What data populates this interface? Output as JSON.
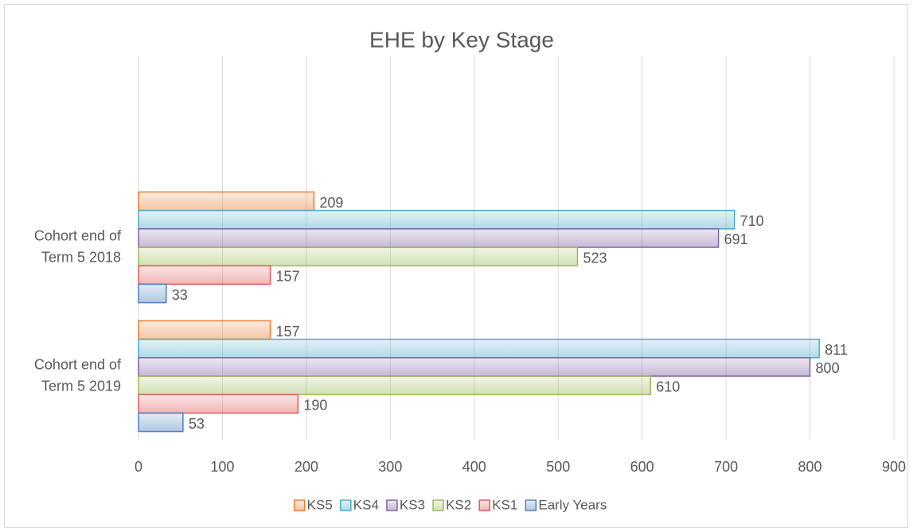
{
  "chart_data": {
    "type": "hbar",
    "title": "EHE by Key Stage",
    "categories": [
      "Cohort end of Term 5 2018",
      "Cohort end of Term 5 2019"
    ],
    "series": [
      {
        "name": "KS5",
        "color": "#ed7d31",
        "values": [
          209,
          157
        ]
      },
      {
        "name": "KS4",
        "color": "#4bacc6",
        "values": [
          710,
          811
        ]
      },
      {
        "name": "KS3",
        "color": "#8064a2",
        "values": [
          691,
          800
        ]
      },
      {
        "name": "KS2",
        "color": "#9bbb59",
        "values": [
          523,
          610
        ]
      },
      {
        "name": "KS1",
        "color": "#e05a5a",
        "values": [
          157,
          190
        ]
      },
      {
        "name": "Early Years",
        "color": "#4f81bd",
        "values": [
          33,
          53
        ]
      }
    ],
    "xlim": [
      0,
      900
    ],
    "xticks": [
      0,
      100,
      200,
      300,
      400,
      500,
      600,
      700,
      800,
      900
    ],
    "grid": true,
    "legend": "bottom"
  }
}
